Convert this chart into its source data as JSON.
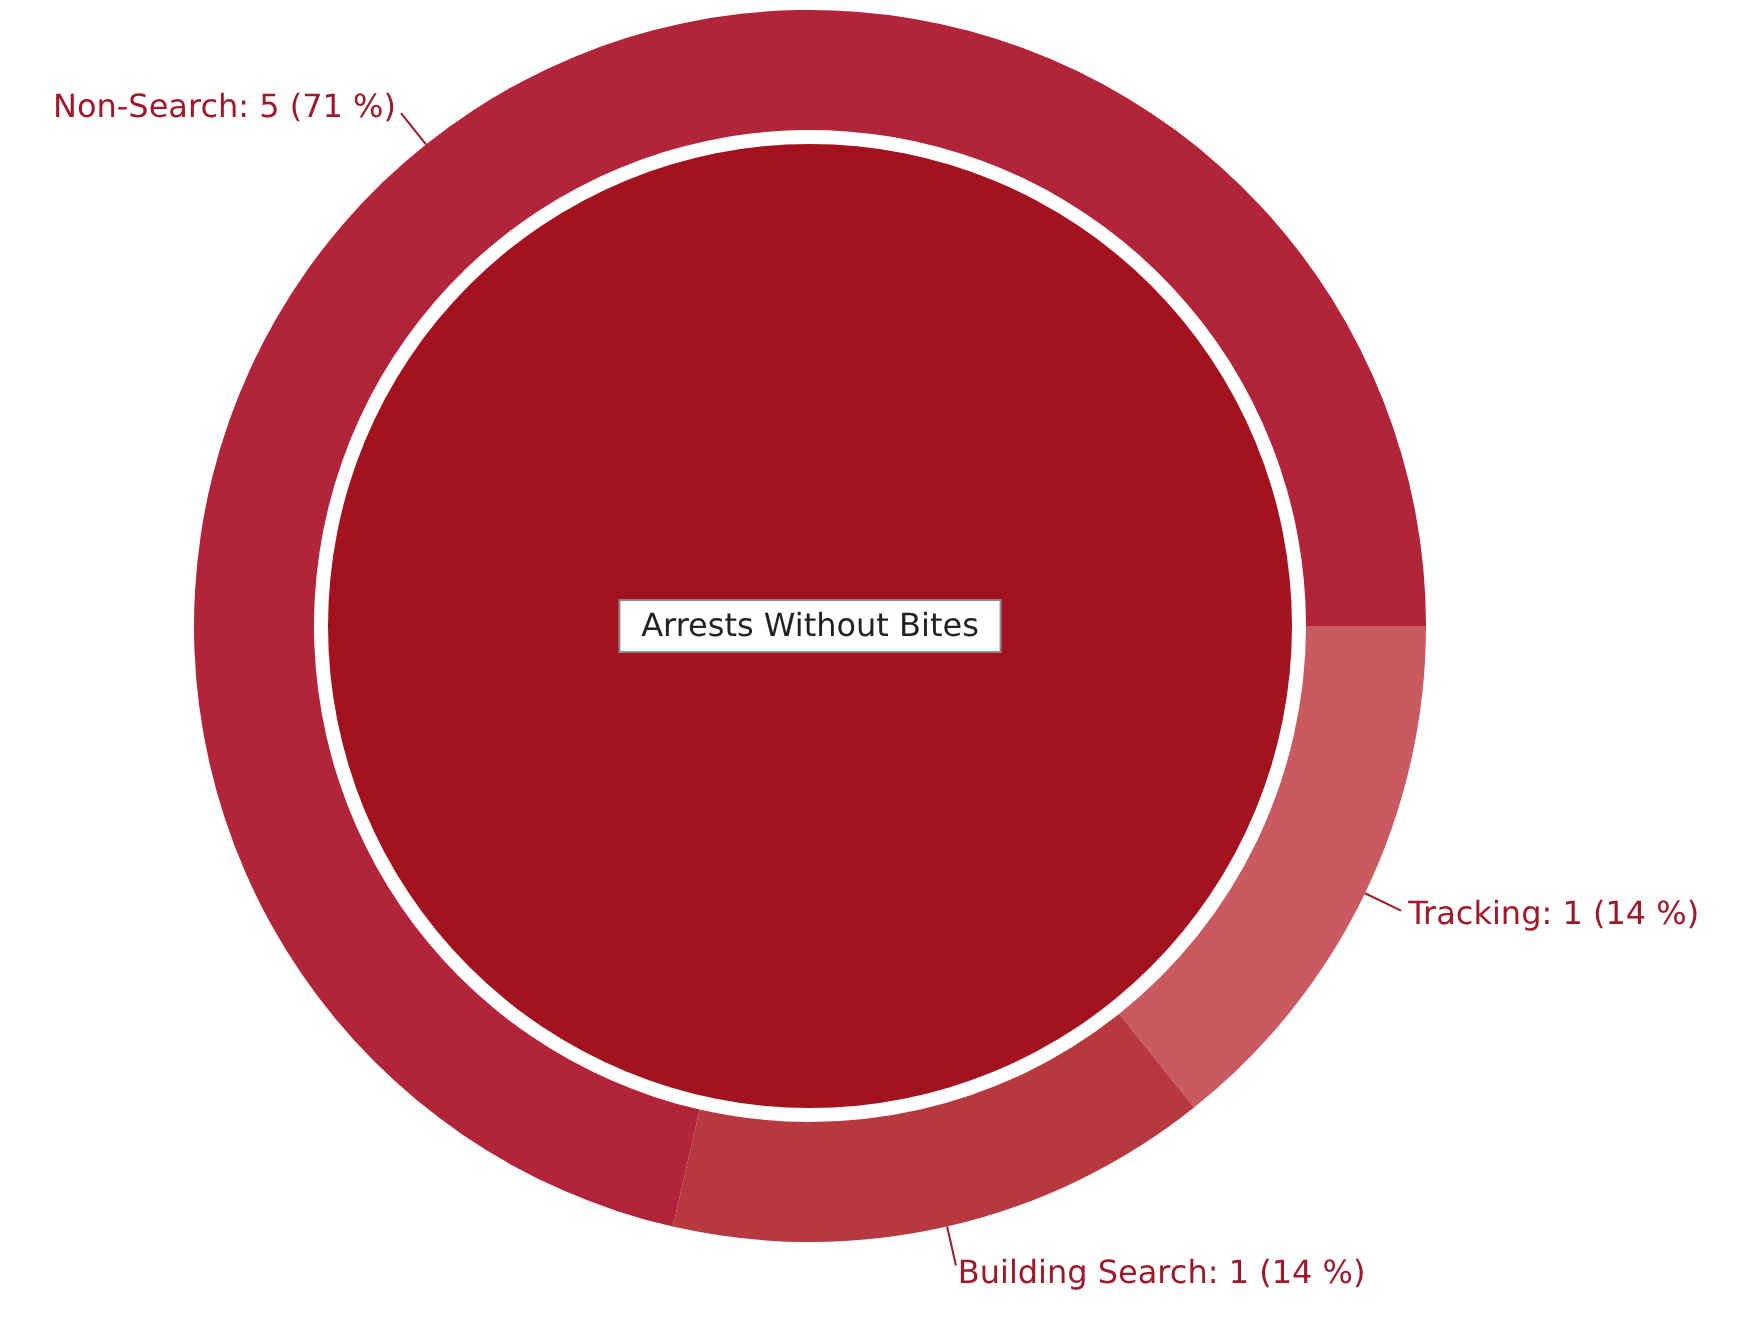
{
  "chart_data": {
    "type": "donut",
    "title": "Arrests Without Bites",
    "categories": [
      "Tracking",
      "Building Search",
      "Non-Search"
    ],
    "values": [
      1,
      1,
      5
    ],
    "colors": [
      "#c95a62",
      "#b8383f",
      "#b2243a"
    ],
    "value_labels": [
      "1 (14 %)",
      "1 (14 %)",
      "5 (71 %)"
    ]
  }
}
